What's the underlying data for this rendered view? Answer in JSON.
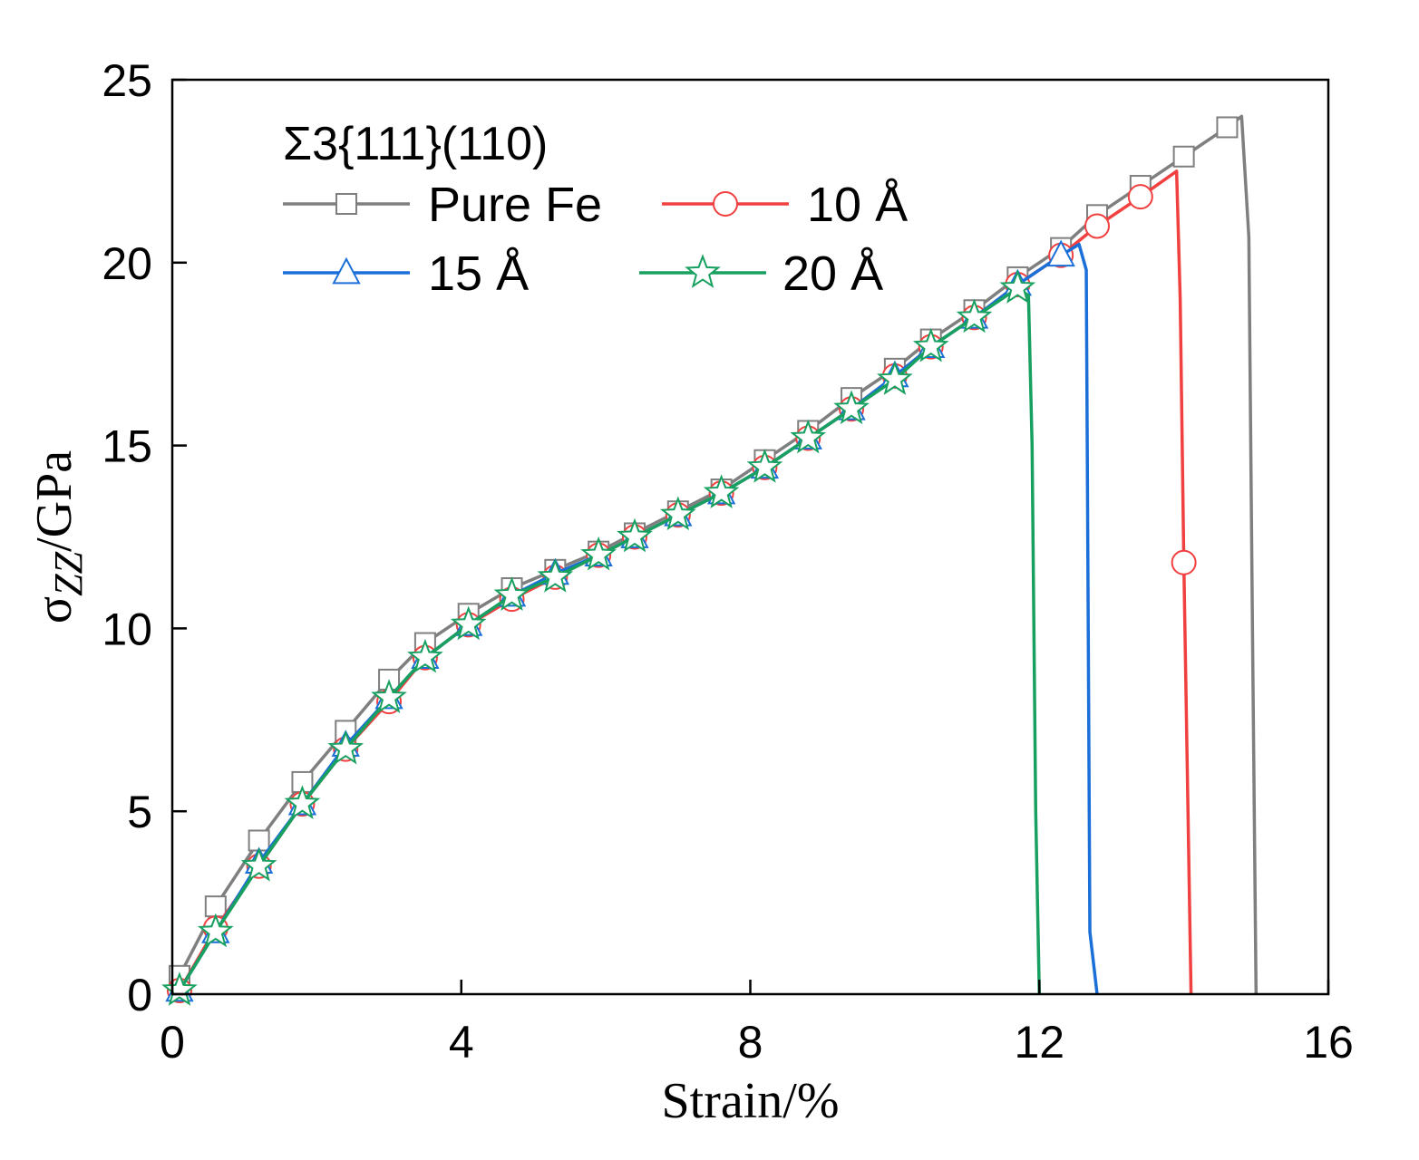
{
  "chart_data": {
    "type": "line",
    "xlabel": "Strain/%",
    "ylabel_main": "σ",
    "ylabel_sub": "ZZ",
    "ylabel_rest": "/GPa",
    "xlim": [
      0,
      16
    ],
    "ylim": [
      0,
      25
    ],
    "x_ticks": [
      0,
      4,
      8,
      12,
      16
    ],
    "y_ticks": [
      0,
      5,
      10,
      15,
      20,
      25
    ],
    "grid": false,
    "legend": {
      "title": "Σ3{111}(110)",
      "placement": "top-left"
    },
    "series": [
      {
        "name": "Pure Fe",
        "color": "#7f7f7f",
        "marker": "square",
        "points": [
          [
            0.1,
            0.5
          ],
          [
            0.6,
            2.4
          ],
          [
            1.2,
            4.2
          ],
          [
            1.8,
            5.8
          ],
          [
            2.4,
            7.2
          ],
          [
            3.0,
            8.6
          ],
          [
            3.5,
            9.6
          ],
          [
            4.1,
            10.4
          ],
          [
            4.7,
            11.1
          ],
          [
            5.3,
            11.6
          ],
          [
            5.9,
            12.1
          ],
          [
            6.4,
            12.6
          ],
          [
            7.0,
            13.2
          ],
          [
            7.6,
            13.8
          ],
          [
            8.2,
            14.6
          ],
          [
            8.8,
            15.4
          ],
          [
            9.4,
            16.3
          ],
          [
            10.0,
            17.1
          ],
          [
            10.5,
            17.9
          ],
          [
            11.1,
            18.7
          ],
          [
            11.7,
            19.6
          ],
          [
            12.3,
            20.4
          ],
          [
            12.8,
            21.3
          ],
          [
            13.4,
            22.1
          ],
          [
            14.0,
            22.9
          ],
          [
            14.6,
            23.7
          ],
          [
            14.8,
            24.0
          ],
          [
            14.9,
            20.7
          ],
          [
            14.95,
            10
          ],
          [
            15.0,
            0
          ]
        ],
        "marker_points": [
          [
            0.1,
            0.5
          ],
          [
            0.6,
            2.4
          ],
          [
            1.2,
            4.2
          ],
          [
            1.8,
            5.8
          ],
          [
            2.4,
            7.2
          ],
          [
            3.0,
            8.6
          ],
          [
            3.5,
            9.6
          ],
          [
            4.1,
            10.4
          ],
          [
            4.7,
            11.1
          ],
          [
            5.3,
            11.6
          ],
          [
            5.9,
            12.1
          ],
          [
            6.4,
            12.6
          ],
          [
            7.0,
            13.2
          ],
          [
            7.6,
            13.8
          ],
          [
            8.2,
            14.6
          ],
          [
            8.8,
            15.4
          ],
          [
            9.4,
            16.3
          ],
          [
            10.0,
            17.1
          ],
          [
            10.5,
            17.9
          ],
          [
            11.1,
            18.7
          ],
          [
            11.7,
            19.6
          ],
          [
            12.3,
            20.4
          ],
          [
            12.8,
            21.3
          ],
          [
            13.4,
            22.1
          ],
          [
            14.0,
            22.9
          ],
          [
            14.6,
            23.7
          ]
        ]
      },
      {
        "name": "10 Å",
        "color": "#f04040",
        "marker": "circle",
        "points": [
          [
            0.1,
            0.1
          ],
          [
            0.6,
            1.8
          ],
          [
            1.2,
            3.5
          ],
          [
            1.8,
            5.2
          ],
          [
            2.4,
            6.7
          ],
          [
            3.0,
            8.0
          ],
          [
            3.5,
            9.2
          ],
          [
            4.1,
            10.1
          ],
          [
            4.7,
            10.8
          ],
          [
            5.3,
            11.4
          ],
          [
            5.9,
            12.0
          ],
          [
            6.4,
            12.5
          ],
          [
            7.0,
            13.1
          ],
          [
            7.6,
            13.7
          ],
          [
            8.2,
            14.4
          ],
          [
            8.8,
            15.2
          ],
          [
            9.4,
            16.0
          ],
          [
            10.0,
            16.9
          ],
          [
            10.5,
            17.7
          ],
          [
            11.1,
            18.5
          ],
          [
            11.7,
            19.4
          ],
          [
            12.3,
            20.2
          ],
          [
            12.8,
            21.0
          ],
          [
            13.4,
            21.8
          ],
          [
            13.9,
            22.5
          ],
          [
            13.95,
            19.0
          ],
          [
            14.0,
            11.8
          ],
          [
            14.1,
            0
          ]
        ],
        "marker_points": [
          [
            0.1,
            0.1
          ],
          [
            0.6,
            1.8
          ],
          [
            1.2,
            3.5
          ],
          [
            1.8,
            5.2
          ],
          [
            2.4,
            6.7
          ],
          [
            3.0,
            8.0
          ],
          [
            3.5,
            9.2
          ],
          [
            4.1,
            10.1
          ],
          [
            4.7,
            10.8
          ],
          [
            5.3,
            11.4
          ],
          [
            5.9,
            12.0
          ],
          [
            6.4,
            12.5
          ],
          [
            7.0,
            13.1
          ],
          [
            7.6,
            13.7
          ],
          [
            8.2,
            14.4
          ],
          [
            8.8,
            15.2
          ],
          [
            9.4,
            16.0
          ],
          [
            10.0,
            16.9
          ],
          [
            10.5,
            17.7
          ],
          [
            11.1,
            18.5
          ],
          [
            11.7,
            19.4
          ],
          [
            12.3,
            20.2
          ],
          [
            12.8,
            21.0
          ],
          [
            13.4,
            21.8
          ],
          [
            14.0,
            11.8
          ]
        ]
      },
      {
        "name": "15 Å",
        "color": "#1a6fd8",
        "marker": "triangle",
        "points": [
          [
            0.1,
            0.1
          ],
          [
            0.6,
            1.7
          ],
          [
            1.2,
            3.6
          ],
          [
            1.8,
            5.2
          ],
          [
            2.4,
            6.8
          ],
          [
            3.0,
            8.1
          ],
          [
            3.5,
            9.2
          ],
          [
            4.1,
            10.1
          ],
          [
            4.7,
            10.9
          ],
          [
            5.3,
            11.5
          ],
          [
            5.9,
            12.0
          ],
          [
            6.4,
            12.5
          ],
          [
            7.0,
            13.1
          ],
          [
            7.6,
            13.7
          ],
          [
            8.2,
            14.4
          ],
          [
            8.8,
            15.2
          ],
          [
            9.4,
            16.0
          ],
          [
            10.0,
            16.9
          ],
          [
            10.5,
            17.7
          ],
          [
            11.1,
            18.5
          ],
          [
            11.7,
            19.4
          ],
          [
            12.3,
            20.2
          ],
          [
            12.55,
            20.5
          ],
          [
            12.65,
            19.8
          ],
          [
            12.7,
            1.7
          ],
          [
            12.8,
            0
          ]
        ],
        "marker_points": [
          [
            0.1,
            0.1
          ],
          [
            0.6,
            1.7
          ],
          [
            1.2,
            3.6
          ],
          [
            1.8,
            5.2
          ],
          [
            2.4,
            6.8
          ],
          [
            3.0,
            8.1
          ],
          [
            3.5,
            9.2
          ],
          [
            4.1,
            10.1
          ],
          [
            4.7,
            10.9
          ],
          [
            5.3,
            11.5
          ],
          [
            5.9,
            12.0
          ],
          [
            6.4,
            12.5
          ],
          [
            7.0,
            13.1
          ],
          [
            7.6,
            13.7
          ],
          [
            8.2,
            14.4
          ],
          [
            8.8,
            15.2
          ],
          [
            9.4,
            16.0
          ],
          [
            10.0,
            16.9
          ],
          [
            10.5,
            17.7
          ],
          [
            11.1,
            18.5
          ],
          [
            11.7,
            19.4
          ],
          [
            12.3,
            20.2
          ]
        ]
      },
      {
        "name": "20 Å",
        "color": "#18a060",
        "marker": "star",
        "points": [
          [
            0.1,
            0.1
          ],
          [
            0.6,
            1.7
          ],
          [
            1.2,
            3.5
          ],
          [
            1.8,
            5.2
          ],
          [
            2.4,
            6.7
          ],
          [
            3.0,
            8.1
          ],
          [
            3.5,
            9.2
          ],
          [
            4.1,
            10.1
          ],
          [
            4.7,
            10.9
          ],
          [
            5.3,
            11.4
          ],
          [
            5.9,
            12.0
          ],
          [
            6.4,
            12.5
          ],
          [
            7.0,
            13.1
          ],
          [
            7.6,
            13.7
          ],
          [
            8.2,
            14.4
          ],
          [
            8.8,
            15.2
          ],
          [
            9.4,
            16.0
          ],
          [
            10.0,
            16.8
          ],
          [
            10.5,
            17.7
          ],
          [
            11.1,
            18.5
          ],
          [
            11.7,
            19.3
          ],
          [
            11.85,
            19.1
          ],
          [
            11.9,
            15.0
          ],
          [
            11.95,
            5.0
          ],
          [
            12.0,
            0
          ]
        ],
        "marker_points": [
          [
            0.1,
            0.1
          ],
          [
            0.6,
            1.7
          ],
          [
            1.2,
            3.5
          ],
          [
            1.8,
            5.2
          ],
          [
            2.4,
            6.7
          ],
          [
            3.0,
            8.1
          ],
          [
            3.5,
            9.2
          ],
          [
            4.1,
            10.1
          ],
          [
            4.7,
            10.9
          ],
          [
            5.3,
            11.4
          ],
          [
            5.9,
            12.0
          ],
          [
            6.4,
            12.5
          ],
          [
            7.0,
            13.1
          ],
          [
            7.6,
            13.7
          ],
          [
            8.2,
            14.4
          ],
          [
            8.8,
            15.2
          ],
          [
            9.4,
            16.0
          ],
          [
            10.0,
            16.8
          ],
          [
            10.5,
            17.7
          ],
          [
            11.1,
            18.5
          ],
          [
            11.7,
            19.3
          ]
        ]
      }
    ]
  }
}
